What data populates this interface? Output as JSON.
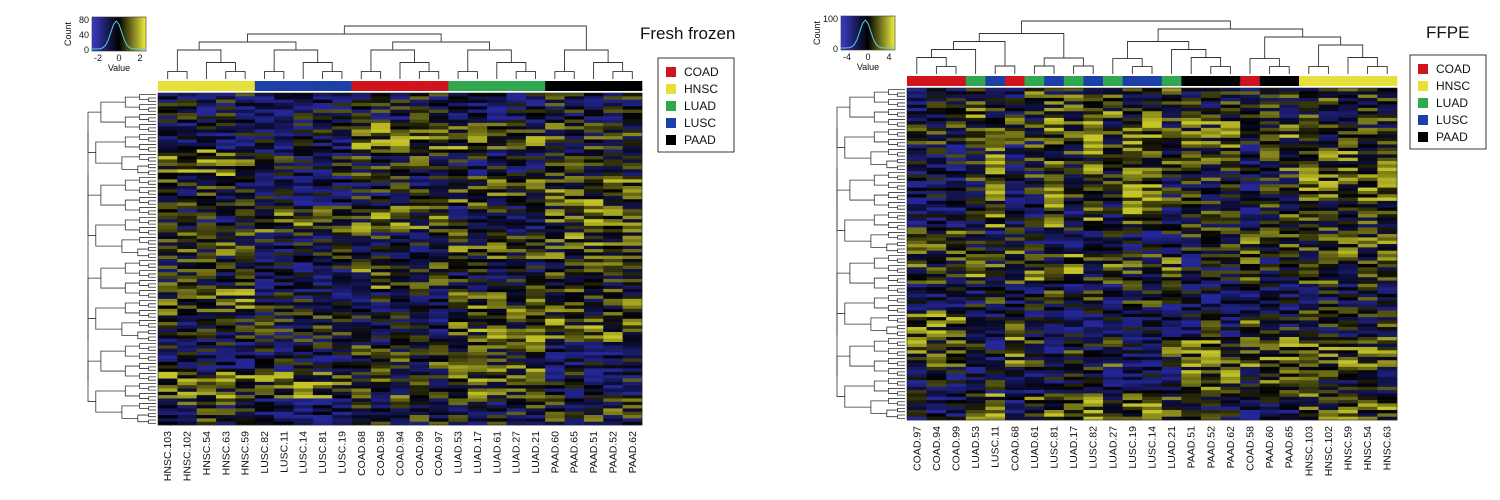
{
  "chart_data": [
    {
      "type": "heatmap",
      "title": "Fresh frozen",
      "columns": [
        "HNSC.103",
        "HNSC.102",
        "HNSC.54",
        "HNSC.63",
        "HNSC.59",
        "LUSC.82",
        "LUSC.11",
        "LUSC.14",
        "LUSC.81",
        "LUSC.19",
        "COAD.68",
        "COAD.58",
        "COAD.94",
        "COAD.99",
        "COAD.97",
        "LUAD.53",
        "LUAD.17",
        "LUAD.61",
        "LUAD.27",
        "LUAD.21",
        "PAAD.60",
        "PAAD.65",
        "PAAD.51",
        "PAAD.52",
        "PAAD.62"
      ],
      "column_groups": [
        "HNSC",
        "HNSC",
        "HNSC",
        "HNSC",
        "HNSC",
        "LUSC",
        "LUSC",
        "LUSC",
        "LUSC",
        "LUSC",
        "COAD",
        "COAD",
        "COAD",
        "COAD",
        "COAD",
        "LUAD",
        "LUAD",
        "LUAD",
        "LUAD",
        "LUAD",
        "PAAD",
        "PAAD",
        "PAAD",
        "PAAD",
        "PAAD"
      ],
      "row_count": 100,
      "color_scale": {
        "low": "#2a2db0",
        "mid": "#000000",
        "high": "#e8e830"
      },
      "color_key": {
        "ylabel": "Count",
        "xlabel": "Value",
        "xticks": [
          "-2",
          "0",
          "2"
        ],
        "yticks": [
          "80",
          "40",
          "0"
        ]
      },
      "legend": [
        {
          "label": "COAD",
          "color": "#d0141e"
        },
        {
          "label": "HNSC",
          "color": "#e8e03a"
        },
        {
          "label": "LUAD",
          "color": "#2fa84f"
        },
        {
          "label": "LUSC",
          "color": "#1c3fa8"
        },
        {
          "label": "PAAD",
          "color": "#000000"
        }
      ],
      "legend_position": "right"
    },
    {
      "type": "heatmap",
      "title": "FFPE",
      "columns": [
        "COAD.97",
        "COAD.94",
        "COAD.99",
        "LUAD.53",
        "LUSC.11",
        "COAD.68",
        "LUAD.61",
        "LUSC.81",
        "LUAD.17",
        "LUSC.82",
        "LUAD.27",
        "LUSC.19",
        "LUSC.14",
        "LUAD.21",
        "PAAD.51",
        "PAAD.52",
        "PAAD.62",
        "COAD.58",
        "PAAD.60",
        "PAAD.65",
        "HNSC.103",
        "HNSC.102",
        "HNSC.59",
        "HNSC.54",
        "HNSC.63"
      ],
      "column_groups": [
        "COAD",
        "COAD",
        "COAD",
        "LUAD",
        "LUSC",
        "COAD",
        "LUAD",
        "LUSC",
        "LUAD",
        "LUSC",
        "LUAD",
        "LUSC",
        "LUSC",
        "LUAD",
        "PAAD",
        "PAAD",
        "PAAD",
        "COAD",
        "PAAD",
        "PAAD",
        "HNSC",
        "HNSC",
        "HNSC",
        "HNSC",
        "HNSC"
      ],
      "row_count": 100,
      "color_scale": {
        "low": "#2a2db0",
        "mid": "#000000",
        "high": "#e8e830"
      },
      "color_key": {
        "ylabel": "Count",
        "xlabel": "Value",
        "xticks": [
          "-4",
          "0",
          "4"
        ],
        "yticks": [
          "100",
          "0"
        ]
      },
      "legend": [
        {
          "label": "COAD",
          "color": "#d0141e"
        },
        {
          "label": "HNSC",
          "color": "#e8e03a"
        },
        {
          "label": "LUAD",
          "color": "#2fa84f"
        },
        {
          "label": "LUSC",
          "color": "#1c3fa8"
        },
        {
          "label": "PAAD",
          "color": "#000000"
        }
      ],
      "legend_position": "right"
    }
  ]
}
